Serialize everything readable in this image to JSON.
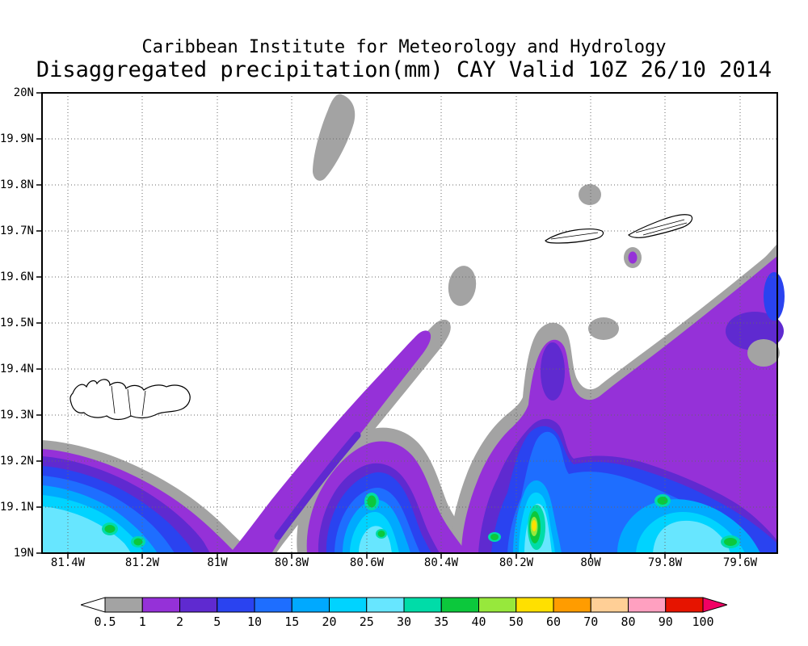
{
  "header": {
    "line1": "Caribbean Institute for Meteorology and Hydrology",
    "line2": "Disaggregated precipitation(mm) CAY Valid 10Z 26/10 2014"
  },
  "axes": {
    "y_labels": [
      "20N",
      "19.9N",
      "19.8N",
      "19.7N",
      "19.6N",
      "19.5N",
      "19.4N",
      "19.3N",
      "19.2N",
      "19.1N",
      "19N"
    ],
    "x_labels": [
      "81.4W",
      "81.2W",
      "81W",
      "80.8W",
      "80.6W",
      "80.4W",
      "80.2W",
      "80W",
      "79.8W",
      "79.6W"
    ]
  },
  "legend": {
    "tick_labels": [
      "0.5",
      "1",
      "2",
      "5",
      "10",
      "15",
      "20",
      "25",
      "30",
      "35",
      "40",
      "50",
      "60",
      "70",
      "80",
      "90",
      "100"
    ],
    "segment_colors": [
      "#a3a3a3",
      "#9531d8",
      "#5f2ad0",
      "#2a43f0",
      "#1e6eff",
      "#00a9ff",
      "#00d3ff",
      "#67e6ff",
      "#00dca8",
      "#0cc83c",
      "#97e83c",
      "#ffe000",
      "#ff9c00",
      "#ffcf96",
      "#ffa0c0",
      "#e61400"
    ],
    "under_arrow_color": "#ffffff",
    "over_arrow_color": "#f20064"
  },
  "chart_data": {
    "type": "heatmap",
    "title": "Disaggregated precipitation(mm) CAY Valid 10Z 26/10 2014",
    "institution": "Caribbean Institute for Meteorology and Hydrology",
    "variable": "precipitation",
    "units": "mm",
    "domain_label": "CAY",
    "valid_time": "10Z 26/10 2014",
    "x_axis": {
      "tick_labels": [
        "81.4W",
        "81.2W",
        "81W",
        "80.8W",
        "80.6W",
        "80.4W",
        "80.2W",
        "80W",
        "79.8W",
        "79.6W"
      ],
      "range": "approx 81.47W to 79.5W"
    },
    "y_axis": {
      "tick_labels": [
        "19N",
        "19.1N",
        "19.2N",
        "19.3N",
        "19.4N",
        "19.5N",
        "19.6N",
        "19.7N",
        "19.8N",
        "19.9N",
        "20N"
      ],
      "range": "19N to 20N"
    },
    "contour_levels_mm": [
      0.5,
      1,
      2,
      5,
      10,
      15,
      20,
      25,
      30,
      35,
      40,
      50,
      60,
      70,
      80,
      90,
      100
    ],
    "grid": "dotted lat-lon grid every 0.1 deg lat / 0.2 deg lon",
    "legend_position": "bottom horizontal colorbar with under/over arrows",
    "features": [
      {
        "name": "southwest-cell",
        "approx_lon": "81.45W-81.0W",
        "approx_lat": "19.0N-19.25N",
        "peak_mm": "35-40"
      },
      {
        "name": "narrow-diagonal-band",
        "approx": "1-5 mm band from 81.0W,19.0N to 80.5W,19.5N"
      },
      {
        "name": "south-central-cell",
        "approx_lon": "80.9W-80.5W",
        "approx_lat": "19.0N-19.27N",
        "peak_mm": "35-40"
      },
      {
        "name": "main-southeast-mass",
        "approx_lon": "80.4W-79.5W",
        "approx_lat": "19.0N-19.7N",
        "peak_mm": "50-60",
        "peak_location": "near 80.2W 19.07N"
      },
      {
        "name": "light-0.5-1mm-patches",
        "locations": [
          "80.65W 19.85N-20N",
          "80.4W 19.55N-19.62N",
          "80.05W 19.78N",
          "80.0W 19.47N",
          "79.55W 19.43N"
        ]
      },
      {
        "name": "isolated-1-2mm-cell",
        "location": "79.85W 19.64N"
      }
    ],
    "map_features": [
      "Grand Cayman coastline near 81.3W 19.3N",
      "Little Cayman coastline near 80.05W 19.68N",
      "Cayman Brac coastline near 79.8W 19.72N"
    ]
  }
}
